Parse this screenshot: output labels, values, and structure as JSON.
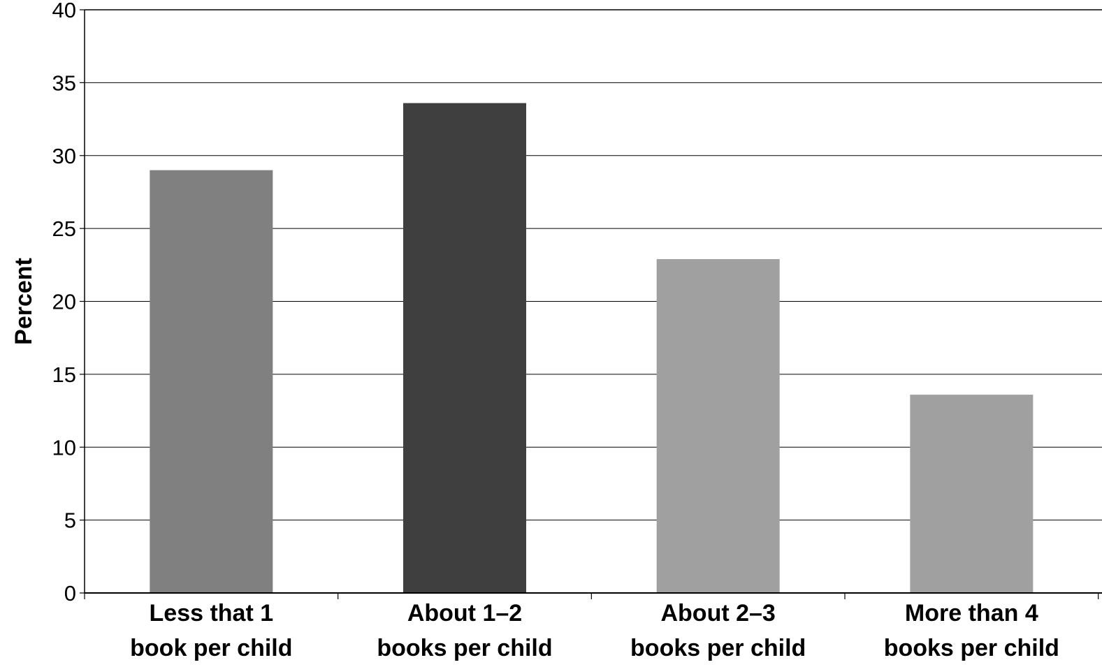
{
  "chart_data": {
    "type": "bar",
    "title": "",
    "xlabel": "",
    "ylabel": "Percent",
    "ylim": [
      0,
      40
    ],
    "yticks": [
      "0",
      "5",
      "10",
      "15",
      "20",
      "25",
      "30",
      "35",
      "40"
    ],
    "grid": true,
    "categories": [
      [
        "Less that 1",
        "book per child"
      ],
      [
        "About 1–2",
        "books per child"
      ],
      [
        "About 2–3",
        "books per child"
      ],
      [
        "More than 4",
        "books per child"
      ]
    ],
    "values": [
      29,
      33.6,
      22.9,
      13.6
    ],
    "colors": [
      "#808080",
      "#3f3f3f",
      "#a0a0a0",
      "#a0a0a0"
    ]
  }
}
